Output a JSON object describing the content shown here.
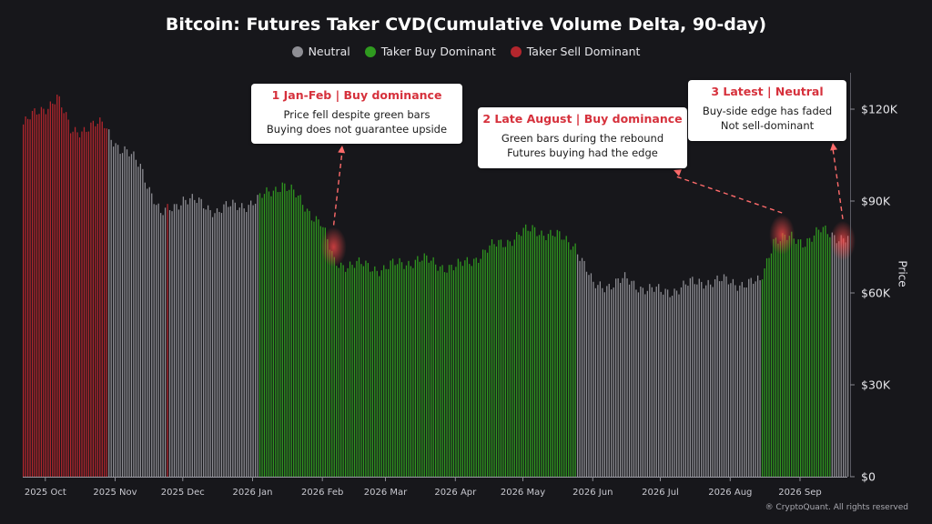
{
  "title": "Bitcoin: Futures Taker CVD(Cumulative Volume Delta, 90-day)",
  "legend": [
    {
      "label": "Neutral",
      "color": "#8e8e94"
    },
    {
      "label": "Taker Buy Dominant",
      "color": "#2f9a1f"
    },
    {
      "label": "Taker Sell Dominant",
      "color": "#b3262d"
    }
  ],
  "watermark": "® CryptoQuant. All rights reserved",
  "annotations": [
    {
      "title": "1  Jan-Feb | Buy dominance",
      "lines": [
        "Price fell despite green bars",
        "Buying does not guarantee upside"
      ]
    },
    {
      "title": "2  Late August | Buy dominance",
      "lines": [
        "Green bars during the rebound",
        "Futures buying had the edge"
      ]
    },
    {
      "title": "3  Latest | Neutral",
      "lines": [
        "Buy-side edge has faded",
        "Not sell-dominant"
      ]
    }
  ],
  "chart_data": {
    "type": "bar",
    "title": "Bitcoin: Futures Taker CVD(Cumulative Volume Delta, 90-day)",
    "ylabel": "Price",
    "ylim": [
      0,
      130000
    ],
    "yticks": [
      "$0",
      "$30K",
      "$60K",
      "$90K",
      "$120K"
    ],
    "ytick_values": [
      0,
      30000,
      60000,
      90000,
      120000
    ],
    "xticks": [
      "2025 Oct",
      "2025 Nov",
      "2025 Dec",
      "2026 Jan",
      "2026 Feb",
      "2026 Mar",
      "2026 Apr",
      "2026 May",
      "2026 Jun",
      "2026 Jul",
      "2026 Aug",
      "2026 Sep"
    ],
    "x_start": "2025-09-21",
    "x_end": "2026-09-22",
    "grid": false,
    "legend_position": "top",
    "color_key": {
      "S": "Taker Sell Dominant",
      "N": "Neutral",
      "B": "Taker Buy Dominant"
    },
    "segments": [
      {
        "state": "S",
        "from": "2025-09-21",
        "to": "2025-10-28"
      },
      {
        "state": "N",
        "from": "2025-10-29",
        "to": "2025-11-23"
      },
      {
        "state": "S",
        "from": "2025-11-24",
        "to": "2025-11-24"
      },
      {
        "state": "N",
        "from": "2025-11-25",
        "to": "2026-01-03"
      },
      {
        "state": "B",
        "from": "2026-01-04",
        "to": "2026-05-24"
      },
      {
        "state": "N",
        "from": "2026-05-25",
        "to": "2026-08-14"
      },
      {
        "state": "B",
        "from": "2026-08-15",
        "to": "2026-09-14"
      },
      {
        "state": "N",
        "from": "2026-09-15",
        "to": "2026-09-22"
      }
    ],
    "price_points": [
      {
        "date": "2025-09-21",
        "price": 115000
      },
      {
        "date": "2025-10-06",
        "price": 124000
      },
      {
        "date": "2025-10-12",
        "price": 113000
      },
      {
        "date": "2025-10-27",
        "price": 115000
      },
      {
        "date": "2025-11-03",
        "price": 107000
      },
      {
        "date": "2025-11-12",
        "price": 102000
      },
      {
        "date": "2025-11-21",
        "price": 85000
      },
      {
        "date": "2025-12-01",
        "price": 91000
      },
      {
        "date": "2025-12-16",
        "price": 87000
      },
      {
        "date": "2026-01-03",
        "price": 90000
      },
      {
        "date": "2026-01-14",
        "price": 96000
      },
      {
        "date": "2026-01-31",
        "price": 83000
      },
      {
        "date": "2026-02-06",
        "price": 70000
      },
      {
        "date": "2026-02-28",
        "price": 68000
      },
      {
        "date": "2026-03-15",
        "price": 71000
      },
      {
        "date": "2026-04-01",
        "price": 68000
      },
      {
        "date": "2026-04-20",
        "price": 76000
      },
      {
        "date": "2026-05-06",
        "price": 81000
      },
      {
        "date": "2026-05-24",
        "price": 76000
      },
      {
        "date": "2026-06-01",
        "price": 62000
      },
      {
        "date": "2026-06-15",
        "price": 64000
      },
      {
        "date": "2026-07-01",
        "price": 60000
      },
      {
        "date": "2026-07-20",
        "price": 64000
      },
      {
        "date": "2026-08-14",
        "price": 63000
      },
      {
        "date": "2026-08-20",
        "price": 78000
      },
      {
        "date": "2026-09-02",
        "price": 77000
      },
      {
        "date": "2026-09-10",
        "price": 80000
      },
      {
        "date": "2026-09-22",
        "price": 78000
      }
    ],
    "highlights": [
      {
        "date": "2026-02-06",
        "price": 75000
      },
      {
        "date": "2026-08-24",
        "price": 79000
      },
      {
        "date": "2026-09-20",
        "price": 77000
      }
    ]
  }
}
